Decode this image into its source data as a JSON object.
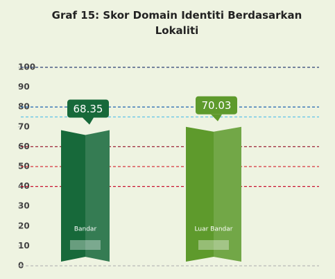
{
  "chart_data": {
    "type": "bar",
    "title": "Graf 15: Skor Domain Identiti Berdasarkan Lokaliti",
    "categories": [
      "Bandar",
      "Luar Bandar"
    ],
    "values": [
      68.35,
      70.03
    ],
    "colors": [
      "#17693a",
      "#5e9a2c"
    ],
    "ylim": [
      0,
      100
    ],
    "yticks": [
      0,
      10,
      20,
      30,
      40,
      50,
      60,
      70,
      80,
      90,
      100
    ],
    "reference_lines": [
      {
        "value": 100,
        "color": "#2c3e73"
      },
      {
        "value": 80,
        "color": "#2f6fb3"
      },
      {
        "value": 75,
        "color": "#5cc3e8"
      },
      {
        "value": 60,
        "color": "#9b2335"
      },
      {
        "value": 50,
        "color": "#d8343f"
      },
      {
        "value": 40,
        "color": "#c8102e"
      },
      {
        "value": 0,
        "color": "#b8b8b8"
      }
    ]
  }
}
